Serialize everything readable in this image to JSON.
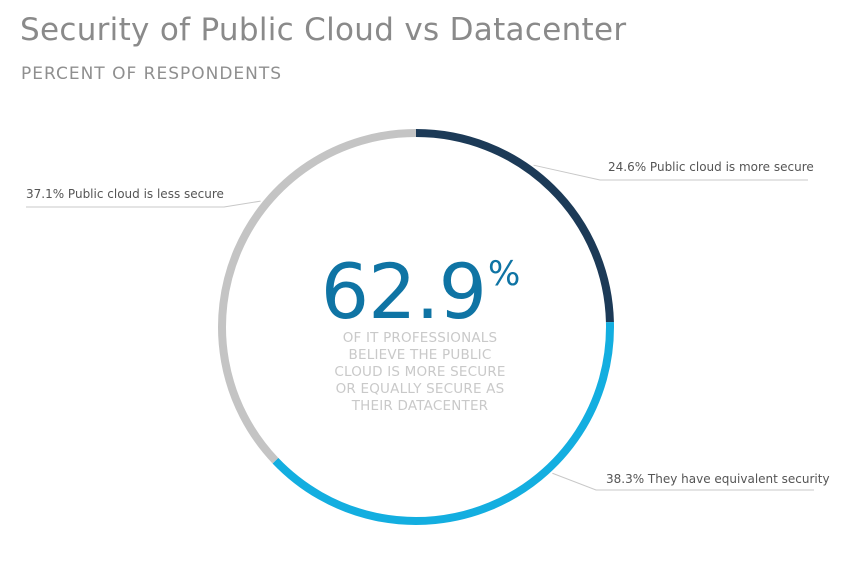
{
  "title": "Security of Public Cloud vs Datacenter",
  "subtitle": "PERCENT OF RESPONDENTS",
  "center": {
    "value": "62.9",
    "unit": "%",
    "caption": [
      "OF IT PROFESSIONALS",
      "BELIEVE THE PUBLIC",
      "CLOUD IS MORE SECURE",
      "OR EQUALLY SECURE AS",
      "THEIR DATACENTER"
    ]
  },
  "chart_data": {
    "type": "pie",
    "variant": "donut-ring",
    "title": "Security of Public Cloud vs Datacenter",
    "subtitle": "PERCENT OF RESPONDENTS",
    "slices": [
      {
        "label": "24.6% Public cloud is more secure",
        "value": 24.6,
        "color": "#1c3a57"
      },
      {
        "label": "38.3% They have equivalent security",
        "value": 38.3,
        "color": "#13aee0"
      },
      {
        "label": "37.1% Public cloud is less secure",
        "value": 37.1,
        "color": "#c4c4c4"
      }
    ],
    "start": "top",
    "direction": "clockwise"
  }
}
